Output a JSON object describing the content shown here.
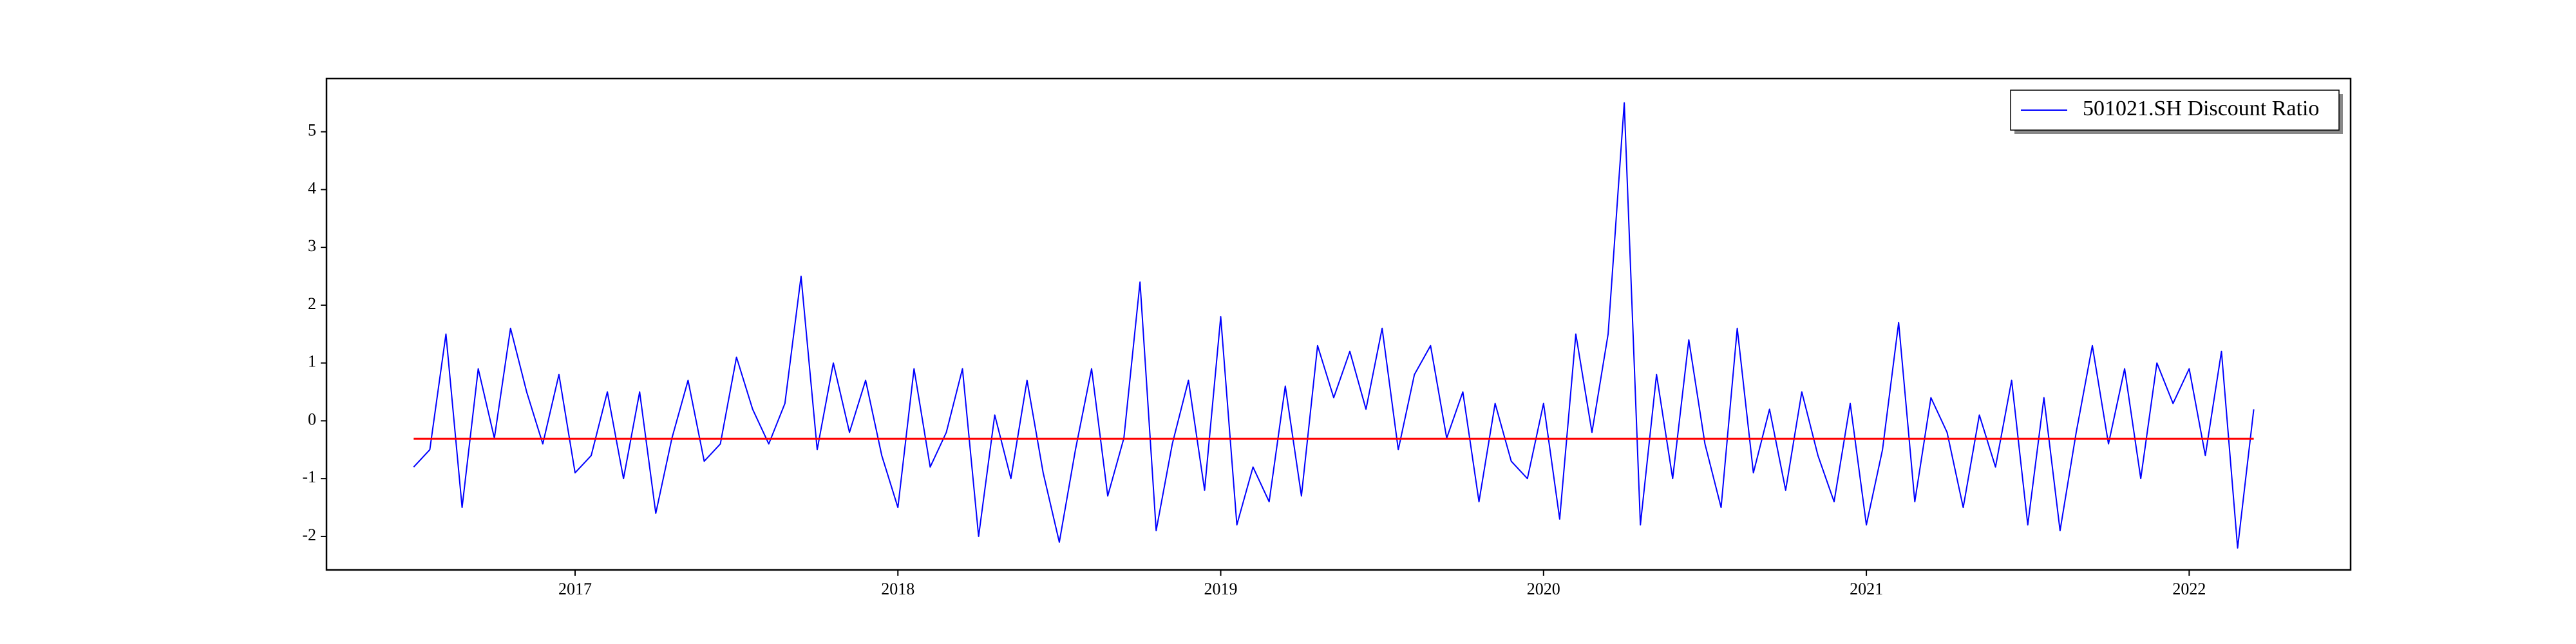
{
  "chart_data": {
    "type": "line",
    "x": [
      2016.5,
      2016.55,
      2016.6,
      2016.65,
      2016.7,
      2016.75,
      2016.8,
      2016.85,
      2016.9,
      2016.95,
      2017.0,
      2017.05,
      2017.1,
      2017.15,
      2017.2,
      2017.25,
      2017.3,
      2017.35,
      2017.4,
      2017.45,
      2017.5,
      2017.55,
      2017.6,
      2017.65,
      2017.7,
      2017.75,
      2017.8,
      2017.85,
      2017.9,
      2017.95,
      2018.0,
      2018.05,
      2018.1,
      2018.15,
      2018.2,
      2018.25,
      2018.3,
      2018.35,
      2018.4,
      2018.45,
      2018.5,
      2018.55,
      2018.6,
      2018.65,
      2018.7,
      2018.75,
      2018.8,
      2018.85,
      2018.9,
      2018.95,
      2019.0,
      2019.05,
      2019.1,
      2019.15,
      2019.2,
      2019.25,
      2019.3,
      2019.35,
      2019.4,
      2019.45,
      2019.5,
      2019.55,
      2019.6,
      2019.65,
      2019.7,
      2019.75,
      2019.8,
      2019.85,
      2019.9,
      2019.95,
      2020.0,
      2020.05,
      2020.1,
      2020.15,
      2020.2,
      2020.25,
      2020.3,
      2020.35,
      2020.4,
      2020.45,
      2020.5,
      2020.55,
      2020.6,
      2020.65,
      2020.7,
      2020.75,
      2020.8,
      2020.85,
      2020.9,
      2020.95,
      2021.0,
      2021.05,
      2021.1,
      2021.15,
      2021.2,
      2021.25,
      2021.3,
      2021.35,
      2021.4,
      2021.45,
      2021.5,
      2021.55,
      2021.6,
      2021.65,
      2021.7,
      2021.75,
      2021.8,
      2021.85,
      2021.9,
      2021.95,
      2022.0,
      2022.05,
      2022.1,
      2022.15,
      2022.2
    ],
    "series": [
      {
        "name": "501021.SH Discount Ratio",
        "color": "#0000ff",
        "values": [
          -0.8,
          -0.5,
          1.5,
          -1.5,
          0.9,
          -0.3,
          1.6,
          0.5,
          -0.4,
          0.8,
          -0.9,
          -0.6,
          0.5,
          -1.0,
          0.5,
          -1.6,
          -0.3,
          0.7,
          -0.7,
          -0.4,
          1.1,
          0.2,
          -0.4,
          0.3,
          2.5,
          -0.5,
          1.0,
          -0.2,
          0.7,
          -0.6,
          -1.5,
          0.9,
          -0.8,
          -0.2,
          0.9,
          -2.0,
          0.1,
          -1.0,
          0.7,
          -0.9,
          -2.1,
          -0.5,
          0.9,
          -1.3,
          -0.3,
          2.4,
          -1.9,
          -0.4,
          0.7,
          -1.2,
          1.8,
          -1.8,
          -0.8,
          -1.4,
          0.6,
          -1.3,
          1.3,
          0.4,
          1.2,
          0.2,
          1.6,
          -0.5,
          0.8,
          1.3,
          -0.3,
          0.5,
          -1.4,
          0.3,
          -0.7,
          -1.0,
          0.3,
          -1.7,
          1.5,
          -0.2,
          1.5,
          5.5,
          -1.8,
          0.8,
          -1.0,
          1.4,
          -0.4,
          -1.5,
          1.6,
          -0.9,
          0.2,
          -1.2,
          0.5,
          -0.6,
          -1.4,
          0.3,
          -1.8,
          -0.5,
          1.7,
          -1.4,
          0.4,
          -0.2,
          -1.5,
          0.1,
          -0.8,
          0.7,
          -1.8,
          0.4,
          -1.9,
          -0.2,
          1.3,
          -0.4,
          0.9,
          -1.0,
          1.0,
          0.3,
          0.9,
          -0.6,
          1.2,
          -2.2,
          0.2
        ]
      }
    ],
    "reference_line": -0.31,
    "reference_color": "#ff0000",
    "xlim": [
      2016.23,
      2022.5
    ],
    "xticks": [
      2017,
      2018,
      2019,
      2020,
      2021,
      2022
    ],
    "ylim": [
      -2.58,
      5.92
    ],
    "yticks": [
      -2,
      -1,
      0,
      1,
      2,
      3,
      4,
      5
    ],
    "legend": "upper right"
  }
}
